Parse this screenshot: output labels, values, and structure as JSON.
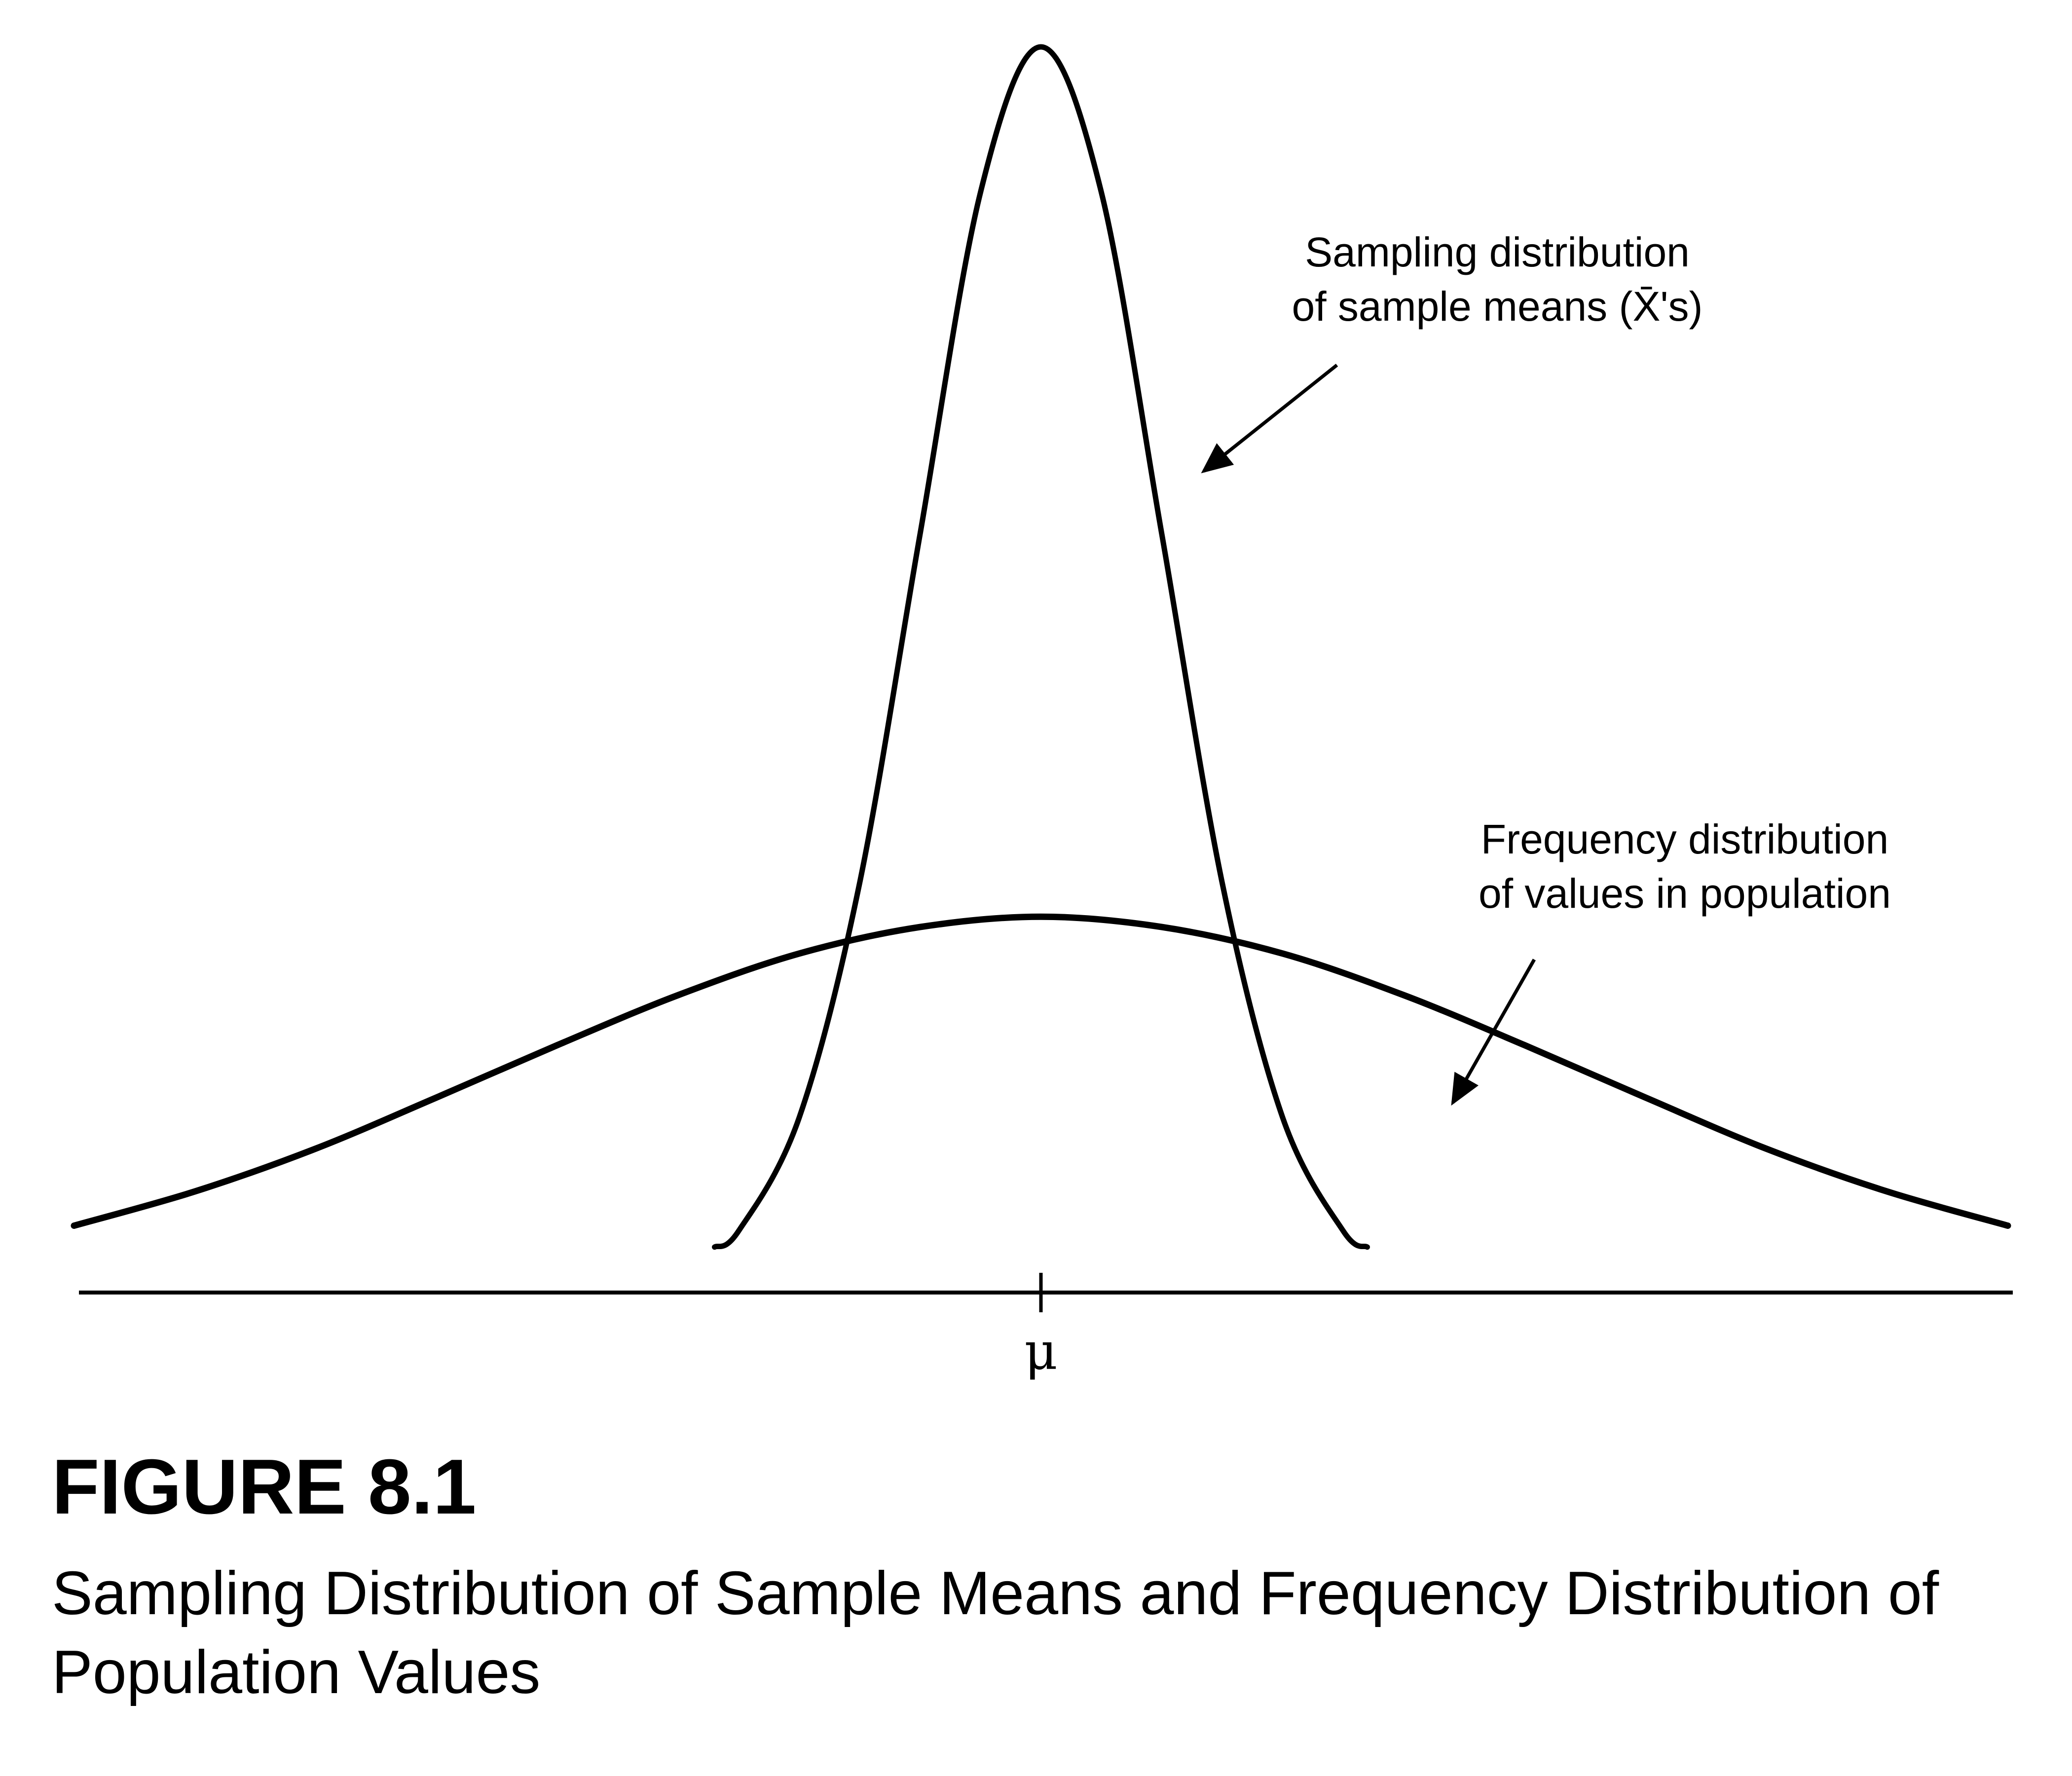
{
  "figure": {
    "number": "FIGURE 8.1",
    "caption": "Sampling Distribution of Sample Means and Frequency Distribution of Population Values"
  },
  "axis": {
    "center_label": "μ"
  },
  "annotations": {
    "sampling": {
      "line1": "Sampling distribution",
      "line2": "of sample means (X̄'s)"
    },
    "population": {
      "line1": "Frequency distribution",
      "line2": "of values in population"
    }
  },
  "chart_data": {
    "type": "line",
    "xlabel": "",
    "ylabel": "",
    "grid": false,
    "series": [
      {
        "name": "Sampling distribution of sample means (X̄'s)",
        "x": [
          -4,
          -3.5,
          -3,
          -2.5,
          -2,
          -1.5,
          -1,
          -0.5,
          0,
          0.5,
          1,
          1.5,
          2,
          2.5,
          3,
          3.5,
          4
        ],
        "y": [
          0.0003,
          0.0022,
          0.011,
          0.0439,
          0.1353,
          0.3247,
          0.6065,
          0.8825,
          1.0,
          0.8825,
          0.6065,
          0.3247,
          0.1353,
          0.0439,
          0.011,
          0.0022,
          0.0003
        ]
      },
      {
        "name": "Frequency distribution of values in population",
        "x": [
          -4,
          -3.5,
          -3,
          -2.5,
          -2,
          -1.5,
          -1,
          -0.5,
          0,
          0.5,
          1,
          1.5,
          2,
          2.5,
          3,
          3.5,
          4
        ],
        "y": [
          0.041,
          0.0646,
          0.0941,
          0.1294,
          0.1655,
          0.2,
          0.2286,
          0.2469,
          0.254,
          0.2469,
          0.2286,
          0.2,
          0.1655,
          0.1294,
          0.0941,
          0.0646,
          0.041
        ]
      }
    ]
  }
}
